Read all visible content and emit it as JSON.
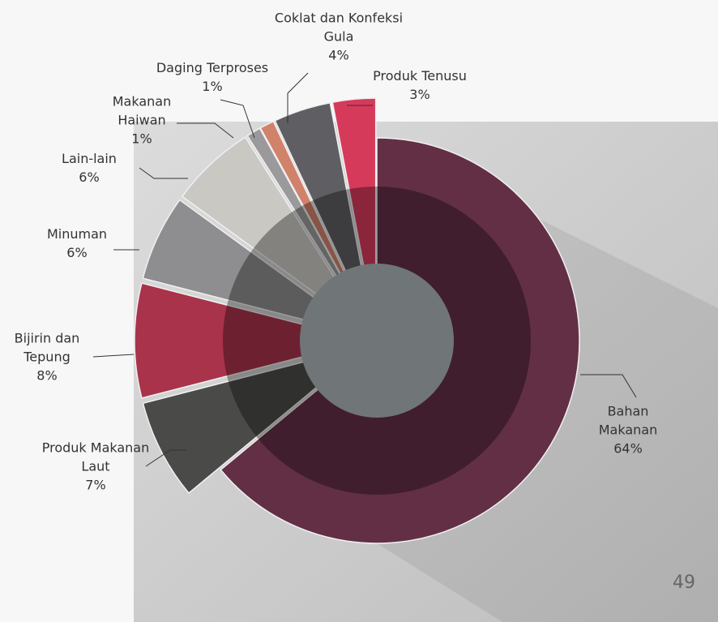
{
  "chart_data": {
    "type": "pie",
    "categories": [
      "Bahan Makanan",
      "Produk Makanan Laut",
      "Bijirin dan Tepung",
      "Minuman",
      "Lain-lain",
      "Makanan Haiwan",
      "Daging Terproses",
      "Coklat dan Konfeksi Gula",
      "Produk Tenusu"
    ],
    "values": [
      64,
      7,
      8,
      6,
      6,
      1,
      1,
      4,
      3
    ],
    "value_labels": [
      "64%",
      "7%",
      "8%",
      "6%",
      "6%",
      "1%",
      "1%",
      "4%",
      "3%"
    ],
    "colors": [
      "#632f45",
      "#4a4a48",
      "#a8334a",
      "#8e8e90",
      "#c9c8c3",
      "#9a9a9c",
      "#d0826b",
      "#5e5e63",
      "#d63a5b"
    ]
  },
  "page_number": "49"
}
